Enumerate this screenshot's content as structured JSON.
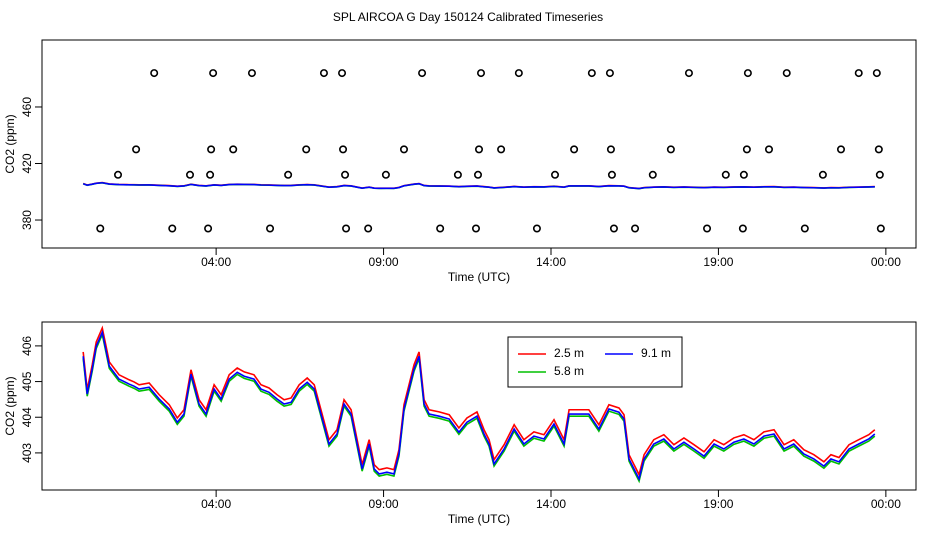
{
  "title": "SPL AIRCOA G  Day 150124  Calibrated Timeseries",
  "chart_data": [
    {
      "type": "scatter",
      "ylabel": "CO2 (ppm)",
      "xlabel": "Time (UTC)",
      "color": "#000000",
      "xlim": [
        -1.2,
        24.9
      ],
      "ylim": [
        360.2,
        507.4
      ],
      "xticks": [
        {
          "value": 4,
          "label": "04:00"
        },
        {
          "value": 9,
          "label": "09:00"
        },
        {
          "value": 14,
          "label": "14:00"
        },
        {
          "value": 19,
          "label": "19:00"
        },
        {
          "value": 24,
          "label": "00:00"
        }
      ],
      "yticks": [
        380,
        420,
        460
      ],
      "x": [
        2.15,
        3.91,
        5.07,
        7.22,
        7.76,
        10.15,
        11.91,
        13.04,
        15.22,
        15.76,
        18.12,
        19.88,
        21.04,
        23.19,
        23.73,
        1.61,
        3.85,
        4.51,
        6.69,
        7.79,
        9.61,
        11.85,
        12.51,
        14.69,
        15.79,
        17.58,
        19.85,
        20.51,
        22.66,
        23.79,
        1.07,
        3.22,
        3.82,
        6.15,
        7.85,
        9.07,
        11.22,
        11.82,
        14.12,
        15.82,
        17.04,
        19.22,
        19.76,
        22.12,
        23.82,
        0.54,
        2.69,
        3.76,
        5.61,
        7.88,
        8.54,
        10.69,
        11.76,
        13.58,
        15.88,
        16.51,
        18.66,
        19.73,
        21.58,
        23.85
      ],
      "values": [
        484,
        484,
        484,
        484,
        484,
        484,
        484,
        484,
        484,
        484,
        484,
        484,
        484,
        484,
        484,
        430,
        430,
        430,
        430,
        430,
        430,
        430,
        430,
        430,
        430,
        430,
        430,
        430,
        430,
        430,
        412,
        412,
        412,
        412,
        412,
        412,
        412,
        412,
        412,
        412,
        412,
        412,
        412,
        412,
        412,
        374,
        374,
        374,
        374,
        374,
        374,
        374,
        374,
        374,
        374,
        374,
        374,
        374,
        374,
        374
      ]
    },
    {
      "type": "line",
      "ylabel": "CO2 (ppm)",
      "xlabel": "Time (UTC)",
      "legend": "top",
      "xlim": [
        -1.2,
        24.9
      ],
      "ylim": [
        401.96,
        406.67
      ],
      "xticks": [
        {
          "value": 4,
          "label": "04:00"
        },
        {
          "value": 9,
          "label": "09:00"
        },
        {
          "value": 14,
          "label": "14:00"
        },
        {
          "value": 19,
          "label": "19:00"
        },
        {
          "value": 24,
          "label": "00:00"
        }
      ],
      "yticks": [
        403,
        404,
        405,
        406
      ],
      "x": [
        0.03,
        0.15,
        0.3,
        0.42,
        0.6,
        0.81,
        1.1,
        1.4,
        1.55,
        1.7,
        2.0,
        2.3,
        2.6,
        2.84,
        3.04,
        3.25,
        3.49,
        3.7,
        3.94,
        4.15,
        4.39,
        4.63,
        4.84,
        5.13,
        5.34,
        5.58,
        5.82,
        6.03,
        6.24,
        6.48,
        6.72,
        6.93,
        7.13,
        7.37,
        7.61,
        7.82,
        8.03,
        8.21,
        8.36,
        8.57,
        8.72,
        8.87,
        9.1,
        9.31,
        9.46,
        9.61,
        9.76,
        9.91,
        10.06,
        10.21,
        10.36,
        10.66,
        10.96,
        11.25,
        11.49,
        11.79,
        12.0,
        12.15,
        12.3,
        12.6,
        12.9,
        13.19,
        13.49,
        13.79,
        14.09,
        14.39,
        14.54,
        14.84,
        15.13,
        15.43,
        15.73,
        16.03,
        16.18,
        16.33,
        16.48,
        16.63,
        16.78,
        17.07,
        17.37,
        17.67,
        17.97,
        18.27,
        18.57,
        18.87,
        19.16,
        19.46,
        19.76,
        20.06,
        20.36,
        20.66,
        20.96,
        21.25,
        21.55,
        21.85,
        22.15,
        22.36,
        22.6,
        22.9,
        23.19,
        23.49,
        23.67
      ],
      "series": [
        {
          "name": "2.5 m",
          "color": "#ff0000",
          "values": [
            405.83,
            404.77,
            405.47,
            406.11,
            406.5,
            405.55,
            405.19,
            405.05,
            404.99,
            404.91,
            404.96,
            404.63,
            404.35,
            403.98,
            404.21,
            405.33,
            404.49,
            404.21,
            404.91,
            404.63,
            405.19,
            405.38,
            405.27,
            405.19,
            404.91,
            404.82,
            404.63,
            404.49,
            404.54,
            404.91,
            405.1,
            404.91,
            404.21,
            403.37,
            403.65,
            404.49,
            404.21,
            403.37,
            402.67,
            403.37,
            402.67,
            402.53,
            402.58,
            402.53,
            403.09,
            404.35,
            404.91,
            405.47,
            405.83,
            404.49,
            404.21,
            404.15,
            404.07,
            403.7,
            403.98,
            404.15,
            403.65,
            403.37,
            402.81,
            403.23,
            403.79,
            403.37,
            403.59,
            403.51,
            403.93,
            403.37,
            404.21,
            404.21,
            404.21,
            403.79,
            404.35,
            404.26,
            404.07,
            402.95,
            402.67,
            402.39,
            402.95,
            403.37,
            403.51,
            403.23,
            403.42,
            403.23,
            403.03,
            403.37,
            403.23,
            403.42,
            403.51,
            403.37,
            403.59,
            403.65,
            403.23,
            403.37,
            403.09,
            402.95,
            402.75,
            402.95,
            402.87,
            403.23,
            403.37,
            403.51,
            403.65
          ]
        },
        {
          "name": "5.8 m",
          "color": "#00c000",
          "values": [
            405.65,
            404.59,
            405.29,
            405.93,
            406.32,
            405.37,
            405.01,
            404.87,
            404.81,
            404.73,
            404.78,
            404.45,
            404.17,
            403.8,
            404.03,
            405.15,
            404.31,
            404.03,
            404.73,
            404.45,
            405.01,
            405.2,
            405.09,
            405.01,
            404.73,
            404.64,
            404.45,
            404.31,
            404.36,
            404.73,
            404.92,
            404.73,
            404.03,
            403.19,
            403.47,
            404.31,
            404.03,
            403.19,
            402.49,
            403.19,
            402.49,
            402.35,
            402.4,
            402.35,
            402.91,
            404.17,
            404.73,
            405.29,
            405.65,
            404.31,
            404.03,
            403.97,
            403.89,
            403.52,
            403.8,
            403.97,
            403.47,
            403.19,
            402.63,
            403.05,
            403.61,
            403.19,
            403.41,
            403.33,
            403.75,
            403.19,
            404.03,
            404.03,
            404.03,
            403.61,
            404.17,
            404.08,
            403.89,
            402.77,
            402.49,
            402.21,
            402.77,
            403.19,
            403.33,
            403.05,
            403.24,
            403.05,
            402.85,
            403.19,
            403.05,
            403.24,
            403.33,
            403.19,
            403.41,
            403.47,
            403.05,
            403.19,
            402.91,
            402.77,
            402.57,
            402.77,
            402.69,
            403.05,
            403.19,
            403.33,
            403.47
          ]
        },
        {
          "name": "9.1 m",
          "color": "#0000ff",
          "values": [
            405.71,
            404.65,
            405.35,
            405.99,
            406.38,
            405.43,
            405.07,
            404.93,
            404.87,
            404.79,
            404.84,
            404.51,
            404.23,
            403.86,
            404.09,
            405.21,
            404.37,
            404.09,
            404.79,
            404.51,
            405.07,
            405.26,
            405.15,
            405.07,
            404.79,
            404.7,
            404.51,
            404.37,
            404.42,
            404.79,
            404.98,
            404.79,
            404.09,
            403.25,
            403.53,
            404.37,
            404.09,
            403.25,
            402.55,
            403.25,
            402.55,
            402.41,
            402.46,
            402.41,
            402.97,
            404.23,
            404.79,
            405.35,
            405.71,
            404.37,
            404.09,
            404.03,
            403.95,
            403.58,
            403.86,
            404.03,
            403.53,
            403.25,
            402.69,
            403.11,
            403.67,
            403.25,
            403.47,
            403.39,
            403.81,
            403.25,
            404.09,
            404.09,
            404.09,
            403.67,
            404.23,
            404.14,
            403.95,
            402.83,
            402.55,
            402.27,
            402.83,
            403.25,
            403.39,
            403.11,
            403.3,
            403.11,
            402.91,
            403.25,
            403.11,
            403.3,
            403.39,
            403.25,
            403.47,
            403.53,
            403.11,
            403.25,
            402.97,
            402.83,
            402.63,
            402.83,
            402.75,
            403.11,
            403.25,
            403.39,
            403.53
          ]
        }
      ]
    }
  ]
}
